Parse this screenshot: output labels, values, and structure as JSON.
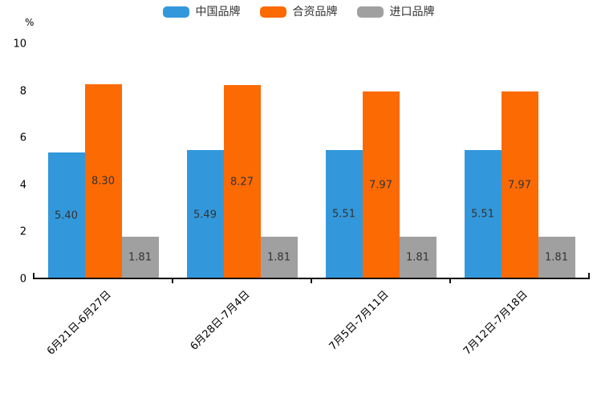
{
  "page": {
    "background": "#ffffff"
  },
  "chart_data": {
    "type": "bar",
    "title": "",
    "unit_label": "%",
    "categories": [
      "6月21日-6月27日",
      "6月28日-7月4日",
      "7月5日-7月11日",
      "7月12日-7月18日"
    ],
    "series": [
      {
        "name": "中国品牌",
        "color": "#3398DB",
        "values": [
          5.4,
          5.49,
          5.51,
          5.51
        ]
      },
      {
        "name": "合资品牌",
        "color": "#FC6A03",
        "values": [
          8.3,
          8.27,
          7.97,
          7.97
        ]
      },
      {
        "name": "进口品牌",
        "color": "#A0A0A0",
        "values": [
          1.81,
          1.81,
          1.81,
          1.81
        ]
      }
    ],
    "value_labels": [
      [
        "5.40",
        "8.30",
        "1.81"
      ],
      [
        "5.49",
        "8.27",
        "1.81"
      ],
      [
        "5.51",
        "7.97",
        "1.81"
      ],
      [
        "5.51",
        "7.97",
        "1.81"
      ]
    ],
    "ylim": [
      0,
      10
    ],
    "yticks": [
      0,
      2,
      4,
      6,
      8,
      10
    ],
    "legend_position": "top",
    "grid": false,
    "axis_color": "#111111",
    "value_label_color": "#333333"
  }
}
